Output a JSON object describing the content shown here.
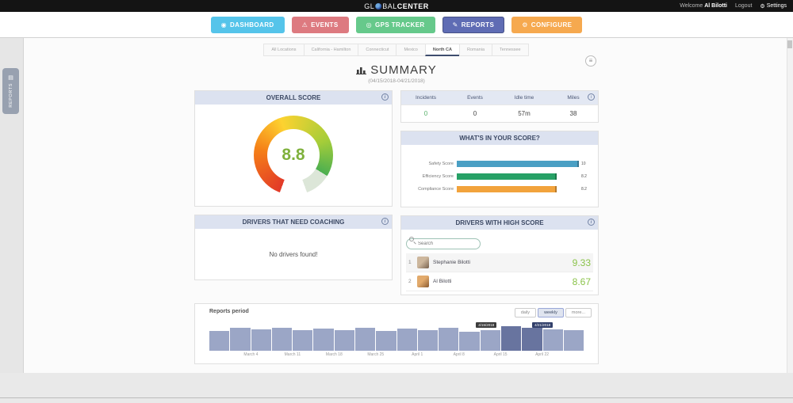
{
  "icons": {
    "gear": "⚙",
    "menu": "≡",
    "reports_tab": "▤"
  },
  "topbar": {
    "logo_gl": "GL",
    "logo_bal": "BAL",
    "logo_center": "CENTER",
    "welcome_prefix": "Welcome",
    "user_name": "Al Bilotti",
    "logout_label": "Logout",
    "settings_label": "Settings"
  },
  "nav": {
    "buttons": [
      {
        "label": "DASHBOARD",
        "icon": "◉",
        "color": "#55c4ea",
        "active": false
      },
      {
        "label": "EVENTS",
        "icon": "⚠",
        "color": "#dd7a80",
        "active": false
      },
      {
        "label": "GPS TRACKER",
        "icon": "◎",
        "color": "#66c98b",
        "active": false
      },
      {
        "label": "REPORTS",
        "icon": "✎",
        "color": "#5f6cb4",
        "active": true
      },
      {
        "label": "CONFIGURE",
        "icon": "⚙",
        "color": "#f6a94f",
        "active": false
      }
    ]
  },
  "side_rail": {
    "label": "REPORTS"
  },
  "tabs": {
    "items": [
      "All Locations",
      "California - Hamilton",
      "Connecticut",
      "Mexico",
      "North CA",
      "Romania",
      "Tennessee"
    ],
    "active_index": 4
  },
  "summary": {
    "title": "SUMMARY",
    "date_range": "(04/15/2018-04/21/2018)"
  },
  "overall_score": {
    "header": "OVERALL SCORE",
    "value": "8.8",
    "max": 10
  },
  "stats": {
    "columns": [
      "Incidents",
      "Events",
      "Idle time",
      "Miles"
    ],
    "values": [
      "0",
      "0",
      "57m",
      "38"
    ]
  },
  "score_breakdown": {
    "header": "WHAT'S IN YOUR SCORE?",
    "chart_data": {
      "type": "bar",
      "orientation": "horizontal",
      "categories": [
        "Safety Score",
        "Efficiency Score",
        "Compliance Score"
      ],
      "values": [
        10,
        8.2,
        8.2
      ],
      "value_labels": [
        "10",
        "8.2",
        "8.2"
      ],
      "colors": [
        "#4a9fc4",
        "#27a166",
        "#f2a33c"
      ],
      "xlim": [
        0,
        10
      ]
    }
  },
  "coaching": {
    "header": "DRIVERS THAT NEED COACHING",
    "empty_message": "No drivers found!"
  },
  "high_score": {
    "header": "DRIVERS WITH HIGH SCORE",
    "search_placeholder": "Search",
    "drivers": [
      {
        "rank": "1",
        "name": "Stephanie Bilotti",
        "score": "9.33"
      },
      {
        "rank": "2",
        "name": "Al Bilotti",
        "score": "8.67"
      }
    ]
  },
  "reports_period": {
    "title": "Reports period",
    "range_buttons": [
      {
        "label": "daily",
        "active": false
      },
      {
        "label": "weekly",
        "active": true
      },
      {
        "label": "more...",
        "active": false
      }
    ],
    "tooltips": [
      "4/15/2018",
      "4/21/2018"
    ],
    "chart_data": {
      "type": "bar",
      "categories": [
        "March 4",
        "March 11",
        "March 18",
        "March 25",
        "April 1",
        "April 8",
        "April 15",
        "April 22"
      ],
      "values": [
        0.78,
        0.9,
        0.84,
        0.9,
        0.8,
        0.88,
        0.82,
        0.9,
        0.78,
        0.86,
        0.8,
        0.9,
        0.74,
        0.82,
        0.97,
        0.92,
        0.84,
        0.8
      ],
      "highlight_indices": [
        14,
        15
      ],
      "bar_color": "#9ba6c6",
      "highlight_color": "#68749f"
    }
  }
}
